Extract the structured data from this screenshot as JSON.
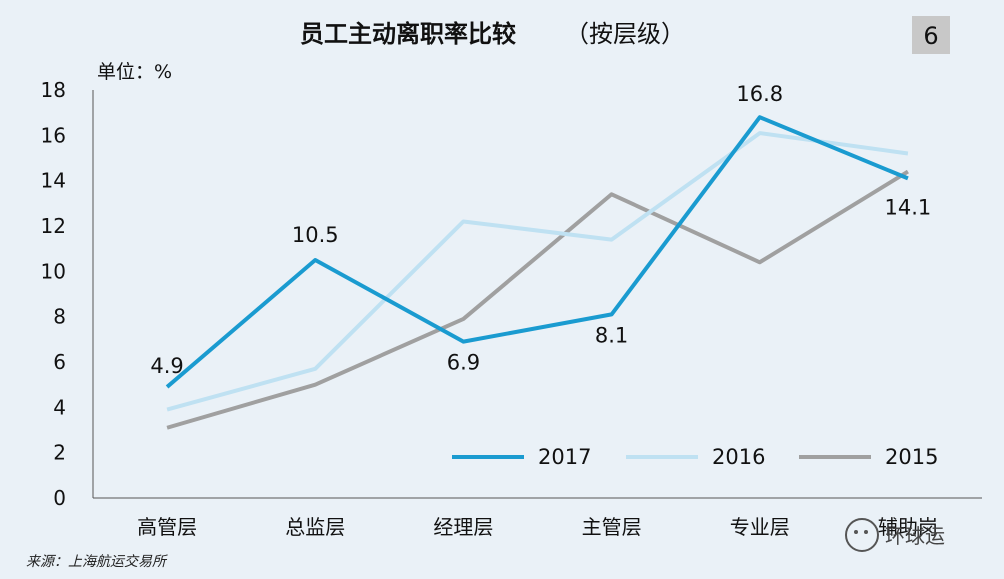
{
  "chart_data": {
    "type": "line",
    "title": "员工主动离职率比较",
    "title_suffix": "（按层级）",
    "badge": "6",
    "unit_label": "单位：%",
    "ylim": [
      0,
      18
    ],
    "yticks": [
      "0",
      "2",
      "4",
      "6",
      "8",
      "10",
      "12",
      "14",
      "16",
      "18"
    ],
    "categories": [
      "高管层",
      "总监层",
      "经理层",
      "主管层",
      "专业层",
      "辅助岗"
    ],
    "series": [
      {
        "name": "2017",
        "color": "#1a9bd0",
        "values": [
          4.9,
          10.5,
          6.9,
          8.1,
          16.8,
          14.1
        ],
        "labels": [
          "4.9",
          "10.5",
          "6.9",
          "8.1",
          "16.8",
          "14.1"
        ]
      },
      {
        "name": "2016",
        "color": "#bfe1f2",
        "values": [
          3.9,
          5.7,
          12.2,
          11.4,
          16.1,
          15.2
        ]
      },
      {
        "name": "2015",
        "color": "#a0a0a0",
        "values": [
          3.1,
          5.0,
          7.9,
          13.4,
          10.4,
          14.4
        ]
      }
    ],
    "legend_position": "bottom-right",
    "source": "来源：上海航运交易所",
    "watermark": "环球运"
  }
}
